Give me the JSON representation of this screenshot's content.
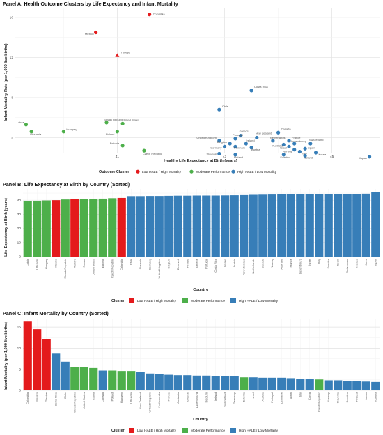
{
  "colors": {
    "low": "#e41a1c",
    "moderate": "#4daf4a",
    "high": "#377eb8",
    "purple": "#9b30ff",
    "grid": "#ebebeb"
  },
  "legend": {
    "title_a": "Outcome Cluster",
    "title_bc": "Cluster",
    "items": [
      "Low HALE / High Mortality",
      "Moderate Performance",
      "High HALE / Low Mortality"
    ]
  },
  "chart_data": [
    {
      "type": "scatter",
      "title": "Panel A: Health Outcome Clusters by Life Expectancy and Infant Mortality",
      "xlabel": "Healthy Life Expectancy at Birth (years)",
      "ylabel": "Infant Mortality Rate (per 1,000 live births)",
      "xlim": [
        39.1,
        45.9
      ],
      "ylim": [
        2.5,
        16.9
      ],
      "xticks": [
        41,
        43,
        45
      ],
      "yticks": [
        4,
        8,
        12,
        16
      ],
      "points": [
        {
          "label": "Colombia",
          "x": 41.6,
          "y": 16.3,
          "cluster": "low"
        },
        {
          "label": "Mexico",
          "x": 40.6,
          "y": 14.5,
          "cluster": "low"
        },
        {
          "label": "Türkiye",
          "x": 41.0,
          "y": 12.2,
          "cluster": "low",
          "shape": "triangle"
        },
        {
          "label": "Latvia",
          "x": 39.3,
          "y": 5.3,
          "cluster": "moderate"
        },
        {
          "label": "Lithuania",
          "x": 39.4,
          "y": 4.6,
          "cluster": "moderate"
        },
        {
          "label": "Hungary",
          "x": 40.0,
          "y": 4.6,
          "cluster": "moderate"
        },
        {
          "label": "Slovak Republic",
          "x": 40.8,
          "y": 5.5,
          "cluster": "moderate"
        },
        {
          "label": "United States",
          "x": 41.1,
          "y": 5.4,
          "cluster": "moderate",
          "labelColor": "purple"
        },
        {
          "label": "Poland",
          "x": 41.0,
          "y": 4.6,
          "cluster": "moderate"
        },
        {
          "label": "Estonia",
          "x": 41.1,
          "y": 3.2,
          "cluster": "moderate"
        },
        {
          "label": "Czech Republic",
          "x": 41.5,
          "y": 2.7,
          "cluster": "moderate"
        },
        {
          "label": "Costa Rica",
          "x": 43.5,
          "y": 8.7,
          "cluster": "high"
        },
        {
          "label": "Chile",
          "x": 42.9,
          "y": 6.8,
          "cluster": "high"
        },
        {
          "label": "Greece",
          "x": 43.3,
          "y": 4.2,
          "cluster": "high"
        },
        {
          "label": "Portugal",
          "x": 43.2,
          "y": 3.9,
          "cluster": "high"
        },
        {
          "label": "New Zealand",
          "x": 43.6,
          "y": 4.0,
          "cluster": "high"
        },
        {
          "label": "Canada",
          "x": 44.0,
          "y": 4.5,
          "cluster": "high"
        },
        {
          "label": "United Kingdom",
          "x": 42.9,
          "y": 3.7,
          "cluster": "high"
        },
        {
          "label": "Ireland",
          "x": 43.4,
          "y": 3.4,
          "cluster": "high"
        },
        {
          "label": "Netherlands",
          "x": 43.9,
          "y": 3.7,
          "cluster": "high"
        },
        {
          "label": "France",
          "x": 44.2,
          "y": 3.7,
          "cluster": "high"
        },
        {
          "label": "Belgium",
          "x": 43.1,
          "y": 3.4,
          "cluster": "high"
        },
        {
          "label": "Luxembourg",
          "x": 44.3,
          "y": 3.4,
          "cluster": "high"
        },
        {
          "label": "Switzerland",
          "x": 44.6,
          "y": 3.4,
          "cluster": "high"
        },
        {
          "label": "Australia",
          "x": 44.1,
          "y": 3.3,
          "cluster": "high"
        },
        {
          "label": "Germany",
          "x": 43.0,
          "y": 3.1,
          "cluster": "high"
        },
        {
          "label": "Denmark",
          "x": 43.2,
          "y": 3.1,
          "cluster": "high"
        },
        {
          "label": "Austria",
          "x": 43.5,
          "y": 3.0,
          "cluster": "high"
        },
        {
          "label": "Israel",
          "x": 44.2,
          "y": 3.1,
          "cluster": "high"
        },
        {
          "label": "Spain",
          "x": 44.5,
          "y": 2.9,
          "cluster": "high"
        },
        {
          "label": "Norway",
          "x": 44.3,
          "y": 2.8,
          "cluster": "high"
        },
        {
          "label": "Italy",
          "x": 44.4,
          "y": 2.6,
          "cluster": "high"
        },
        {
          "label": "Korea",
          "x": 44.7,
          "y": 2.5,
          "cluster": "high"
        },
        {
          "label": "Slovenia",
          "x": 42.9,
          "y": 2.4,
          "cluster": "high"
        },
        {
          "label": "Finland",
          "x": 43.2,
          "y": 2.3,
          "cluster": "high"
        },
        {
          "label": "Sweden",
          "x": 44.1,
          "y": 2.3,
          "cluster": "high"
        },
        {
          "label": "Iceland",
          "x": 44.5,
          "y": 2.2,
          "cluster": "high"
        },
        {
          "label": "Japan",
          "x": 45.7,
          "y": 2.1,
          "cluster": "high"
        }
      ]
    },
    {
      "type": "bar",
      "title": "Panel B: Life Expectancy at Birth by Country (Sorted)",
      "xlabel": "Country",
      "ylabel": "Life Expectancy at Birth (years)",
      "ylim": [
        0,
        48
      ],
      "yticks": [
        0,
        10,
        20,
        30,
        40
      ],
      "categories": [
        "Latvia",
        "Lithuania",
        "Hungary",
        "Mexico",
        "Slovak Republic",
        "Türkiye",
        "Poland",
        "United States",
        "Estonia",
        "Czech Republic",
        "Colombia",
        "Chile",
        "Slovenia",
        "Germany",
        "United Kingdom",
        "Belgium",
        "Denmark",
        "Finland",
        "Greece",
        "Portugal",
        "Costa Rica",
        "Ireland",
        "Austria",
        "New Zealand",
        "Netherlands",
        "Canada",
        "Norway",
        "Australia",
        "France",
        "Luxembourg",
        "Israel",
        "Italy",
        "Sweden",
        "Spain",
        "Switzerland",
        "Iceland",
        "Korea",
        "Japan"
      ],
      "clusters": [
        "moderate",
        "moderate",
        "moderate",
        "low",
        "moderate",
        "low",
        "moderate",
        "moderate",
        "moderate",
        "moderate",
        "low",
        "high",
        "high",
        "high",
        "high",
        "high",
        "high",
        "high",
        "high",
        "high",
        "high",
        "high",
        "high",
        "high",
        "high",
        "high",
        "high",
        "high",
        "high",
        "high",
        "high",
        "high",
        "high",
        "high",
        "high",
        "high",
        "high",
        "high"
      ],
      "values": [
        39.4,
        39.6,
        39.8,
        40.0,
        40.5,
        40.7,
        40.9,
        41.0,
        41.1,
        41.4,
        41.6,
        42.9,
        42.9,
        43.0,
        43.0,
        43.1,
        43.2,
        43.2,
        43.3,
        43.3,
        43.3,
        43.4,
        43.5,
        43.6,
        43.8,
        43.9,
        44.0,
        44.1,
        44.1,
        44.2,
        44.2,
        44.3,
        44.3,
        44.4,
        44.5,
        44.5,
        44.6,
        45.8
      ]
    },
    {
      "type": "bar",
      "title": "Panel C: Infant Mortality by Country (Sorted)",
      "xlabel": "Country",
      "ylabel": "Infant Mortality (per 1,000 live births)",
      "ylim": [
        0,
        17
      ],
      "yticks": [
        0,
        5,
        10,
        15
      ],
      "categories": [
        "Colombia",
        "Mexico",
        "Türkiye",
        "Costa Rica",
        "Chile",
        "Slovak Republic",
        "United States",
        "Latvia",
        "Canada",
        "Poland",
        "Hungary",
        "Lithuania",
        "New Zealand",
        "United Kingdom",
        "Netherlands",
        "France",
        "Australia",
        "Greece",
        "Luxembourg",
        "Belgium",
        "Ireland",
        "Switzerland",
        "Germany",
        "Estonia",
        "Israel",
        "Austria",
        "Portugal",
        "Denmark",
        "Spain",
        "Italy",
        "Korea",
        "Czech Republic",
        "Norway",
        "Slovenia",
        "Sweden",
        "Finland",
        "Japan",
        "Iceland"
      ],
      "clusters": [
        "low",
        "low",
        "low",
        "high",
        "high",
        "moderate",
        "moderate",
        "moderate",
        "high",
        "moderate",
        "moderate",
        "moderate",
        "high",
        "high",
        "high",
        "high",
        "high",
        "high",
        "high",
        "high",
        "high",
        "high",
        "high",
        "moderate",
        "high",
        "high",
        "high",
        "high",
        "high",
        "high",
        "high",
        "moderate",
        "high",
        "high",
        "high",
        "high",
        "high",
        "high"
      ],
      "values": [
        16.3,
        14.5,
        12.2,
        8.7,
        6.8,
        5.6,
        5.5,
        5.3,
        4.7,
        4.7,
        4.6,
        4.6,
        4.4,
        4.0,
        3.8,
        3.7,
        3.6,
        3.6,
        3.5,
        3.5,
        3.4,
        3.4,
        3.3,
        3.1,
        3.1,
        3.0,
        3.0,
        3.0,
        2.9,
        2.8,
        2.7,
        2.6,
        2.4,
        2.4,
        2.3,
        2.3,
        2.1,
        2.0
      ]
    }
  ]
}
